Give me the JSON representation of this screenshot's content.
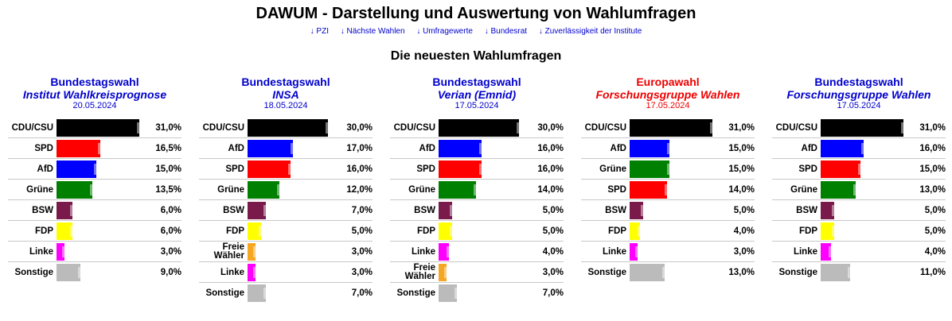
{
  "header": {
    "title": "DAWUM - Darstellung und Auswertung von Wahlumfragen",
    "nav": [
      "↓ PZI",
      "↓ Nächste Wahlen",
      "↓ Umfragewerte",
      "↓ Bundesrat",
      "↓ Zuverlässigkeit der Institute"
    ],
    "subtitle": "Die neuesten Wahlumfragen"
  },
  "colors": {
    "CDU/CSU": "#000000",
    "SPD": "#ff0000",
    "AfD": "#0000ff",
    "Grüne": "#008000",
    "BSW": "#7a1a4a",
    "FDP": "#ffff00",
    "Linke": "#ff00ff",
    "Freie Wähler": "#f5a623",
    "Sonstige": "#bbbbbb"
  },
  "chart_data": [
    {
      "type": "bar",
      "title": "Bundestagswahl",
      "institute": "Institut Wahlkreisprognose",
      "date": "20.05.2024",
      "title_color": "blue",
      "categories": [
        "CDU/CSU",
        "SPD",
        "AfD",
        "Grüne",
        "BSW",
        "FDP",
        "Linke",
        "Sonstige"
      ],
      "values": [
        31.0,
        16.5,
        15.0,
        13.5,
        6.0,
        6.0,
        3.0,
        9.0
      ],
      "labels": [
        "31,0%",
        "16,5%",
        "15,0%",
        "13,5%",
        "6,0%",
        "6,0%",
        "3,0%",
        "9,0%"
      ],
      "xlim": [
        0,
        34
      ]
    },
    {
      "type": "bar",
      "title": "Bundestagswahl",
      "institute": "INSA",
      "date": "18.05.2024",
      "title_color": "blue",
      "categories": [
        "CDU/CSU",
        "AfD",
        "SPD",
        "Grüne",
        "BSW",
        "FDP",
        "Freie Wähler",
        "Linke",
        "Sonstige"
      ],
      "values": [
        30.0,
        17.0,
        16.0,
        12.0,
        7.0,
        5.0,
        3.0,
        3.0,
        7.0
      ],
      "labels": [
        "30,0%",
        "17,0%",
        "16,0%",
        "12,0%",
        "7,0%",
        "5,0%",
        "3,0%",
        "3,0%",
        "7,0%"
      ],
      "xlim": [
        0,
        34
      ]
    },
    {
      "type": "bar",
      "title": "Bundestagswahl",
      "institute": "Verian (Emnid)",
      "date": "17.05.2024",
      "title_color": "blue",
      "categories": [
        "CDU/CSU",
        "AfD",
        "SPD",
        "Grüne",
        "BSW",
        "FDP",
        "Linke",
        "Freie Wähler",
        "Sonstige"
      ],
      "values": [
        30.0,
        16.0,
        16.0,
        14.0,
        5.0,
        5.0,
        4.0,
        3.0,
        7.0
      ],
      "labels": [
        "30,0%",
        "16,0%",
        "16,0%",
        "14,0%",
        "5,0%",
        "5,0%",
        "4,0%",
        "3,0%",
        "7,0%"
      ],
      "xlim": [
        0,
        34
      ]
    },
    {
      "type": "bar",
      "title": "Europawahl",
      "institute": "Forschungsgruppe Wahlen",
      "date": "17.05.2024",
      "title_color": "red",
      "categories": [
        "CDU/CSU",
        "AfD",
        "Grüne",
        "SPD",
        "BSW",
        "FDP",
        "Linke",
        "Sonstige"
      ],
      "values": [
        31.0,
        15.0,
        15.0,
        14.0,
        5.0,
        4.0,
        3.0,
        13.0
      ],
      "labels": [
        "31,0%",
        "15,0%",
        "15,0%",
        "14,0%",
        "5,0%",
        "4,0%",
        "3,0%",
        "13,0%"
      ],
      "xlim": [
        0,
        34
      ]
    },
    {
      "type": "bar",
      "title": "Bundestagswahl",
      "institute": "Forschungsgruppe Wahlen",
      "date": "17.05.2024",
      "title_color": "blue",
      "categories": [
        "CDU/CSU",
        "AfD",
        "SPD",
        "Grüne",
        "BSW",
        "FDP",
        "Linke",
        "Sonstige"
      ],
      "values": [
        31.0,
        16.0,
        15.0,
        13.0,
        5.0,
        5.0,
        4.0,
        11.0
      ],
      "labels": [
        "31,0%",
        "16,0%",
        "15,0%",
        "13,0%",
        "5,0%",
        "5,0%",
        "4,0%",
        "11,0%"
      ],
      "xlim": [
        0,
        34
      ]
    }
  ]
}
